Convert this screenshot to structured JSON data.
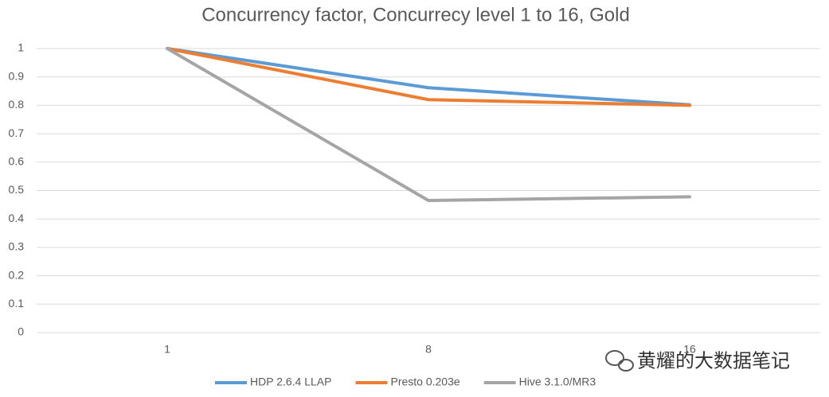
{
  "chart_data": {
    "type": "line",
    "title": "Concurrency factor, Concurrecy level 1 to 16, Gold",
    "categories": [
      "1",
      "8",
      "16"
    ],
    "series": [
      {
        "name": "HDP 2.6.4 LLAP",
        "color": "#5b9bd5",
        "values": [
          1,
          0.862,
          0.802
        ]
      },
      {
        "name": "Presto 0.203e",
        "color": "#ed7d31",
        "values": [
          1,
          0.82,
          0.8
        ]
      },
      {
        "name": "Hive 3.1.0/MR3",
        "color": "#a5a5a5",
        "values": [
          1,
          0.465,
          0.478
        ]
      }
    ],
    "ylim": [
      0,
      1
    ],
    "yticks": [
      0,
      0.1,
      0.2,
      0.3,
      0.4,
      0.5,
      0.6,
      0.7,
      0.8,
      0.9,
      1
    ],
    "grid": true,
    "legend": "bottom",
    "watermark": "黄耀的大数据笔记"
  }
}
